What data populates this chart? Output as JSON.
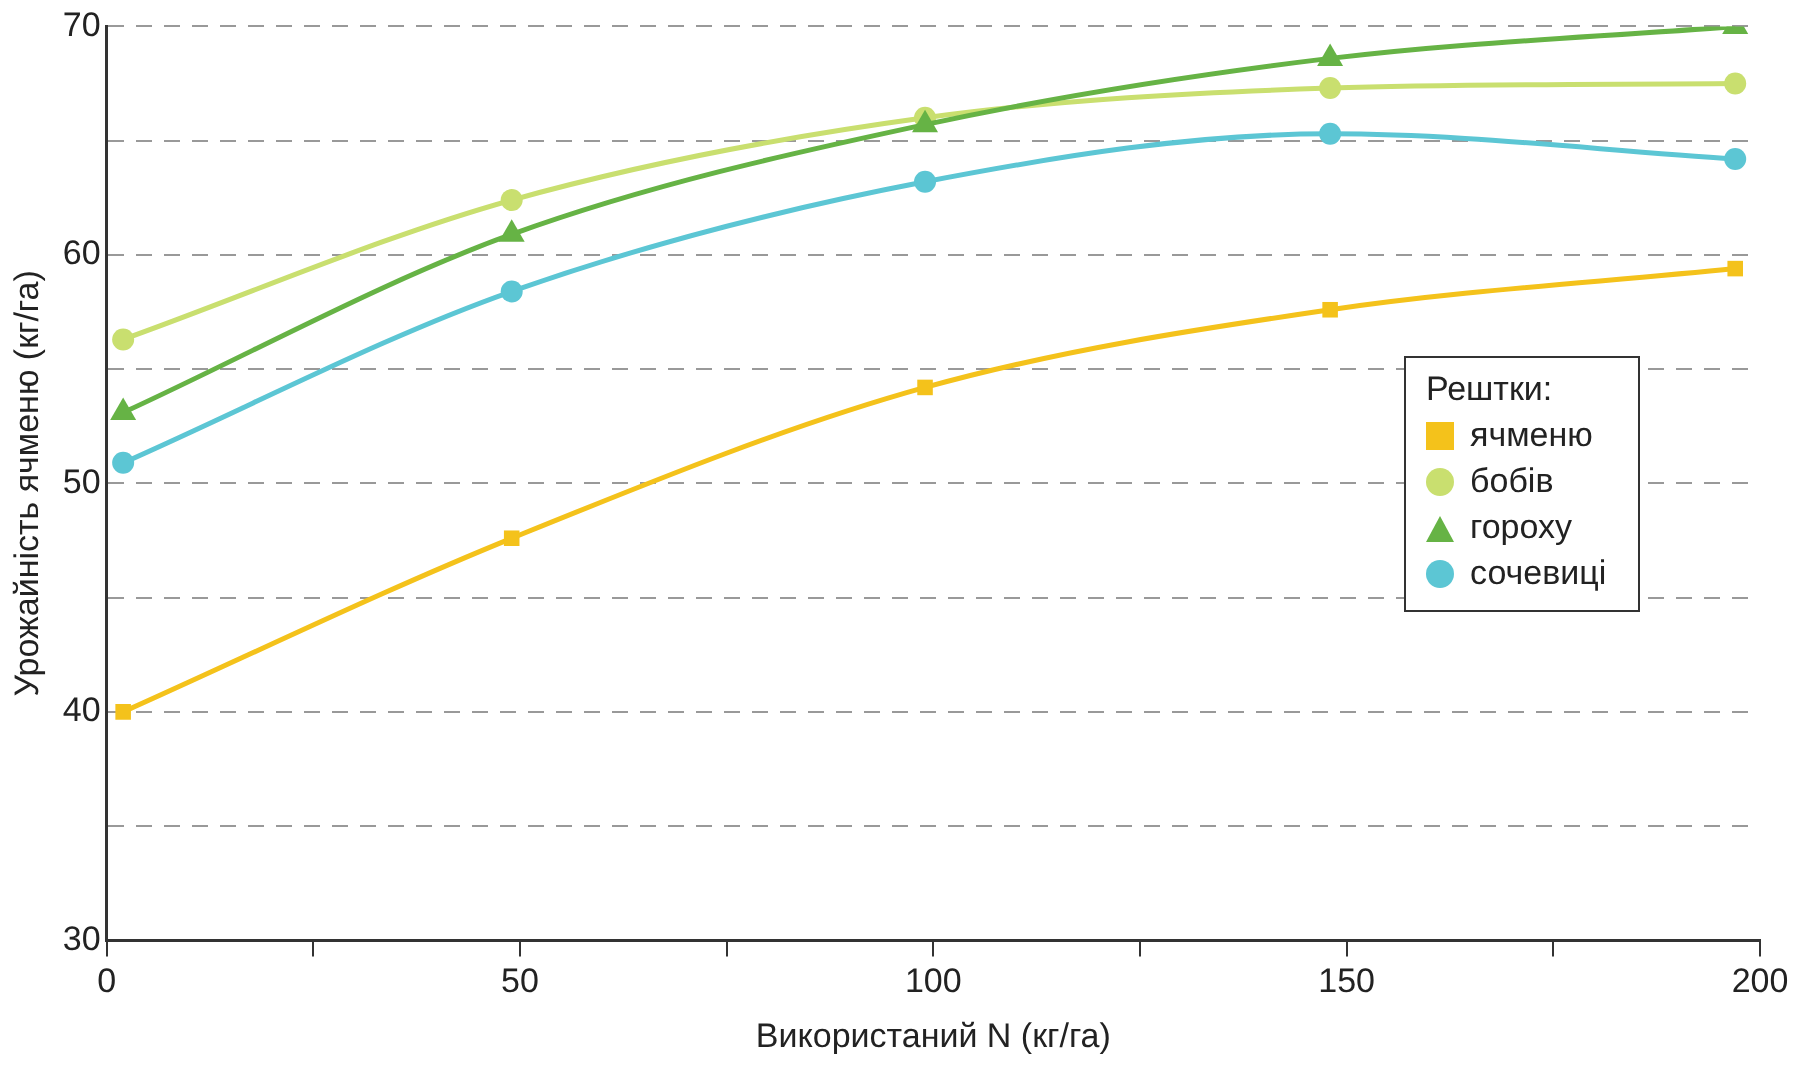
{
  "chart_data": {
    "type": "line",
    "xlabel": "Використаний N (кг/га)",
    "ylabel": "Урожайність ячменю (кг/га)",
    "legend_title": "Рештки:",
    "legend": "right",
    "x": [
      2,
      49,
      99,
      148,
      197
    ],
    "series": [
      {
        "name": "ячменю",
        "color": "#f4c21b",
        "marker": "square",
        "values": [
          40.0,
          47.6,
          54.2,
          57.6,
          59.4
        ]
      },
      {
        "name": "бобів",
        "color": "#c9df6f",
        "marker": "circle",
        "values": [
          56.3,
          62.4,
          66.0,
          67.3,
          67.5
        ]
      },
      {
        "name": "гороху",
        "color": "#66b345",
        "marker": "triangle",
        "values": [
          53.1,
          60.9,
          65.7,
          68.6,
          70.0
        ]
      },
      {
        "name": "сочевиці",
        "color": "#5cc6d4",
        "marker": "circle",
        "values": [
          50.9,
          58.4,
          63.2,
          65.3,
          64.2
        ]
      }
    ],
    "xlim": [
      0,
      200
    ],
    "xticks": [
      0,
      {
        "value": 25,
        "label": null
      },
      50,
      {
        "value": 75,
        "label": null
      },
      100,
      {
        "value": 125,
        "label": null
      },
      150,
      {
        "value": 175,
        "label": null
      },
      200
    ],
    "ylim": [
      30,
      70
    ],
    "yticks": [
      30,
      {
        "value": 35,
        "label": null
      },
      40,
      {
        "value": 45,
        "label": null
      },
      50,
      {
        "value": 55,
        "label": null
      },
      60,
      {
        "value": 65,
        "label": null
      },
      70
    ],
    "grid": "y",
    "line_style": "solid"
  }
}
